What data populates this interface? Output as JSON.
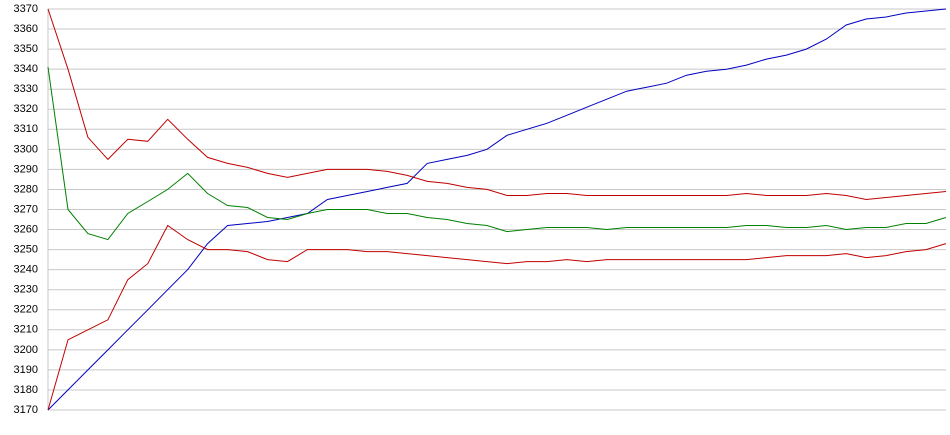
{
  "chart_data": {
    "type": "line",
    "ylim": [
      3170,
      3370
    ],
    "yticks": [
      3170,
      3180,
      3190,
      3200,
      3210,
      3220,
      3230,
      3240,
      3250,
      3260,
      3270,
      3280,
      3290,
      3300,
      3310,
      3320,
      3330,
      3340,
      3350,
      3360,
      3370
    ],
    "grid": true,
    "series": [
      {
        "color": "#0000c0",
        "values": [
          3170,
          3180,
          3190,
          3200,
          3210,
          3220,
          3230,
          3240,
          3253,
          3262,
          3263,
          3264,
          3266,
          3268,
          3275,
          3277,
          3279,
          3281,
          3283,
          3293,
          3295,
          3297,
          3300,
          3307,
          3310,
          3313,
          3317,
          3321,
          3325,
          3329,
          3331,
          3333,
          3337,
          3339,
          3340,
          3342,
          3345,
          3347,
          3350,
          3355,
          3362,
          3365,
          3366,
          3368,
          3369,
          3370
        ]
      },
      {
        "color": "#c00000",
        "values": [
          3370,
          3340,
          3306,
          3295,
          3305,
          3304,
          3315,
          3305,
          3296,
          3293,
          3291,
          3288,
          3286,
          3288,
          3290,
          3290,
          3290,
          3289,
          3287,
          3284,
          3283,
          3281,
          3280,
          3277,
          3277,
          3278,
          3278,
          3277,
          3277,
          3277,
          3277,
          3277,
          3277,
          3277,
          3277,
          3278,
          3277,
          3277,
          3277,
          3278,
          3277,
          3275,
          3276,
          3277,
          3278,
          3279
        ]
      },
      {
        "color": "#008000",
        "values": [
          3341,
          3270,
          3258,
          3255,
          3268,
          3274,
          3280,
          3288,
          3278,
          3272,
          3271,
          3266,
          3265,
          3268,
          3270,
          3270,
          3270,
          3268,
          3268,
          3266,
          3265,
          3263,
          3262,
          3259,
          3260,
          3261,
          3261,
          3261,
          3260,
          3261,
          3261,
          3261,
          3261,
          3261,
          3261,
          3262,
          3262,
          3261,
          3261,
          3262,
          3260,
          3261,
          3261,
          3263,
          3263,
          3266
        ]
      },
      {
        "color": "#c00000",
        "values": [
          3170,
          3205,
          3210,
          3215,
          3235,
          3243,
          3262,
          3255,
          3250,
          3250,
          3249,
          3245,
          3244,
          3250,
          3250,
          3250,
          3249,
          3249,
          3248,
          3247,
          3246,
          3245,
          3244,
          3243,
          3244,
          3244,
          3245,
          3244,
          3245,
          3245,
          3245,
          3245,
          3245,
          3245,
          3245,
          3245,
          3246,
          3247,
          3247,
          3247,
          3248,
          3246,
          3247,
          3249,
          3250,
          3253
        ]
      }
    ]
  }
}
